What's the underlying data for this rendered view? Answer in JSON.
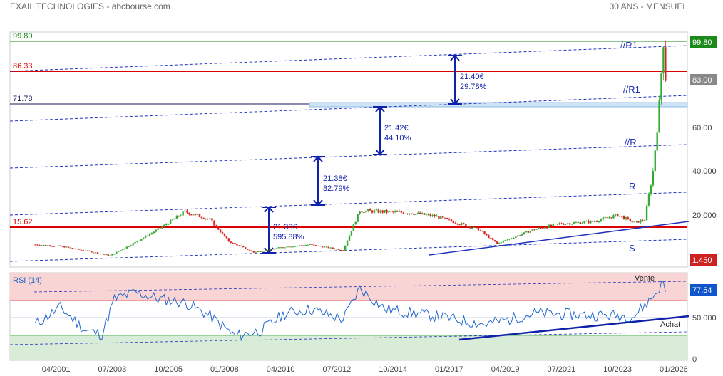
{
  "header": {
    "title": "EXAIL TECHNOLOGIES - abcbourse.com",
    "period": "30 ANS - MENSUEL"
  },
  "colors": {
    "candle_up": "#33aa33",
    "candle_down": "#dd2222",
    "level_green": "#1a8a1a",
    "level_red": "#dd0000",
    "trend_blue": "#2233bb",
    "rsi_line": "#2266cc",
    "rsi_over_zone": "#f8d4d4",
    "rsi_under_zone": "#d8ecd8"
  },
  "chart_data": {
    "type": "candlestick",
    "x_tick_labels": [
      "04/2001",
      "07/2003",
      "10/2005",
      "01/2008",
      "04/2010",
      "07/2012",
      "10/2014",
      "01/2017",
      "04/2019",
      "07/2021",
      "10/2023",
      "01/2026"
    ],
    "y_tick_labels": [
      "20.000",
      "40.000",
      "60.00"
    ],
    "price_badges": [
      {
        "label": "99.80",
        "color": "#1a8a1a"
      },
      {
        "label": "83.00",
        "color": "#888888"
      },
      {
        "label": "1.450",
        "color": "#cc2222"
      }
    ],
    "levels": [
      {
        "label": "99.80",
        "value": 99.8,
        "color": "#1a8a1a"
      },
      {
        "label": "86.33",
        "value": 86.33,
        "color": "#dd0000"
      },
      {
        "label": "71.78",
        "value": 71.78,
        "color": "#1a1a5a"
      },
      {
        "label": "15.62",
        "value": 15.62,
        "color": "#dd0000"
      }
    ],
    "channel_labels": [
      "//R1",
      "//R1",
      "//R",
      "R",
      "S"
    ],
    "measures": [
      {
        "line1": "21.38€",
        "line2": "595.88%"
      },
      {
        "line1": "21.38€",
        "line2": "82.79%"
      },
      {
        "line1": "21.42€",
        "line2": "44.10%"
      },
      {
        "line1": "21.40€",
        "line2": "29.78%"
      }
    ],
    "price_series": [
      {
        "date": "2000-06",
        "value": 6.5
      },
      {
        "date": "2001-06",
        "value": 5.8
      },
      {
        "date": "2002-09",
        "value": 3.2
      },
      {
        "date": "2003-06",
        "value": 1.5
      },
      {
        "date": "2004-04",
        "value": 6.5
      },
      {
        "date": "2005-06",
        "value": 14.0
      },
      {
        "date": "2006-06",
        "value": 21.5
      },
      {
        "date": "2007-06",
        "value": 18.0
      },
      {
        "date": "2008-03",
        "value": 8.0
      },
      {
        "date": "2009-03",
        "value": 3.0
      },
      {
        "date": "2010-06",
        "value": 5.5
      },
      {
        "date": "2011-06",
        "value": 6.5
      },
      {
        "date": "2012-10",
        "value": 4.0
      },
      {
        "date": "2013-06",
        "value": 22.0
      },
      {
        "date": "2015-06",
        "value": 21.0
      },
      {
        "date": "2016-06",
        "value": 19.5
      },
      {
        "date": "2018-03",
        "value": 13.5
      },
      {
        "date": "2018-12",
        "value": 7.0
      },
      {
        "date": "2020-06",
        "value": 13.5
      },
      {
        "date": "2021-06",
        "value": 16.0
      },
      {
        "date": "2022-10",
        "value": 17.0
      },
      {
        "date": "2023-10",
        "value": 20.0
      },
      {
        "date": "2024-06",
        "value": 16.5
      },
      {
        "date": "2024-11",
        "value": 18.0
      },
      {
        "date": "2025-03",
        "value": 40.0
      },
      {
        "date": "2025-06",
        "value": 70.0
      },
      {
        "date": "2025-08",
        "value": 99.8
      },
      {
        "date": "2025-09",
        "value": 83.0
      }
    ],
    "rsi": {
      "label": "RSI (14)",
      "value_badge": "77.54",
      "y_tick_labels": [
        "50.000",
        "0"
      ],
      "annotations": [
        "Vente",
        "Achat"
      ],
      "series": [
        {
          "date": "2000-06",
          "value": 42
        },
        {
          "date": "2001-06",
          "value": 62
        },
        {
          "date": "2002-06",
          "value": 35
        },
        {
          "date": "2003-02",
          "value": 30
        },
        {
          "date": "2003-08",
          "value": 72
        },
        {
          "date": "2004-06",
          "value": 80
        },
        {
          "date": "2005-06",
          "value": 72
        },
        {
          "date": "2006-06",
          "value": 68
        },
        {
          "date": "2007-06",
          "value": 52
        },
        {
          "date": "2008-06",
          "value": 28
        },
        {
          "date": "2009-06",
          "value": 34
        },
        {
          "date": "2010-06",
          "value": 55
        },
        {
          "date": "2011-06",
          "value": 60
        },
        {
          "date": "2012-10",
          "value": 48
        },
        {
          "date": "2013-06",
          "value": 85
        },
        {
          "date": "2014-06",
          "value": 60
        },
        {
          "date": "2016-06",
          "value": 52
        },
        {
          "date": "2018-06",
          "value": 42
        },
        {
          "date": "2019-06",
          "value": 48
        },
        {
          "date": "2020-06",
          "value": 55
        },
        {
          "date": "2022-06",
          "value": 53
        },
        {
          "date": "2024-06",
          "value": 52
        },
        {
          "date": "2025-03",
          "value": 75
        },
        {
          "date": "2025-08",
          "value": 92
        },
        {
          "date": "2025-09",
          "value": 77.54
        }
      ]
    }
  }
}
